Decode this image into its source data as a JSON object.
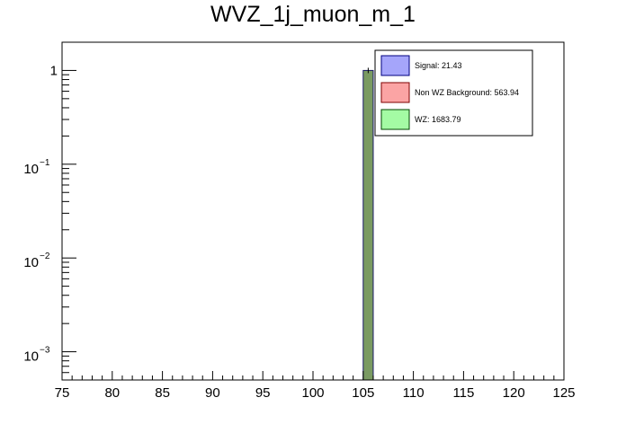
{
  "chart_data": {
    "type": "bar",
    "title": "WVZ_1j_muon_m_1",
    "xlabel": "",
    "ylabel": "",
    "x_range": [
      75,
      125
    ],
    "y_scale": "log",
    "y_range": [
      0.0005,
      2
    ],
    "x_tick_labels": [
      "75",
      "80",
      "85",
      "90",
      "95",
      "100",
      "105",
      "110",
      "115",
      "120",
      "125"
    ],
    "y_tick_labels": [
      {
        "base": "1",
        "exp": "",
        "value": 1
      },
      {
        "base": "10",
        "exp": "−1",
        "value": 0.1
      },
      {
        "base": "10",
        "exp": "−2",
        "value": 0.01
      },
      {
        "base": "10",
        "exp": "−3",
        "value": 0.001
      }
    ],
    "bin_width": 1,
    "bins": [
      {
        "x_low": 105,
        "x_high": 106,
        "value": 1
      }
    ],
    "series": [
      {
        "name": "Signal: 21.43",
        "color": "#a5a5fa",
        "edge": "#00007f"
      },
      {
        "name": "Non WZ Background: 563.94",
        "color": "#fba4a4",
        "edge": "#7f0000"
      },
      {
        "name": "WZ: 1683.79",
        "color": "#a4fba4",
        "edge": "#004400"
      }
    ],
    "stack_fill_color": "#7a9a62",
    "legend_position": "top-right",
    "grid": false
  }
}
